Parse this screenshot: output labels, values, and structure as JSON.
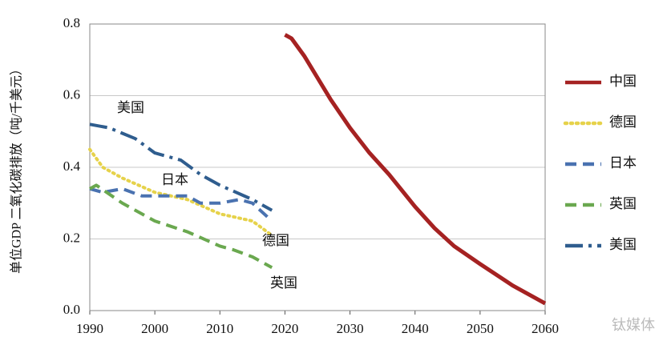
{
  "chart_data": {
    "type": "line",
    "y_label": "单位GDP 二氧化碳排放（吨/千美元）",
    "xlim": [
      1990,
      2060
    ],
    "xticks": [
      1990,
      2000,
      2010,
      2020,
      2030,
      2040,
      2050,
      2060
    ],
    "ylim": [
      0,
      0.8
    ],
    "yticks": [
      {
        "value": 0,
        "label": "0.0"
      },
      {
        "value": 0.2,
        "label": "0.2"
      },
      {
        "value": 0.4,
        "label": "0.4"
      },
      {
        "value": 0.6,
        "label": "0.6"
      },
      {
        "value": 0.8,
        "label": "0.8"
      }
    ],
    "grid": true,
    "legend": "right",
    "series": [
      {
        "name": "中国",
        "color": "#a52222",
        "dash": "solid",
        "x": [
          2020,
          2021,
          2023,
          2025,
          2027,
          2030,
          2033,
          2036,
          2040,
          2043,
          2046,
          2050,
          2055,
          2060
        ],
        "values": [
          0.77,
          0.76,
          0.71,
          0.65,
          0.59,
          0.51,
          0.44,
          0.38,
          0.29,
          0.23,
          0.18,
          0.13,
          0.07,
          0.02
        ]
      },
      {
        "name": "德国",
        "color": "#e6d24a",
        "dash": "dot",
        "x": [
          1990,
          1992,
          1995,
          2000,
          2005,
          2010,
          2015,
          2018
        ],
        "values": [
          0.45,
          0.4,
          0.37,
          0.33,
          0.31,
          0.27,
          0.25,
          0.21
        ]
      },
      {
        "name": "日本",
        "color": "#4a72b0",
        "dash": "dash",
        "x": [
          1990,
          1992,
          1995,
          1998,
          2000,
          2005,
          2007,
          2010,
          2013,
          2015,
          2018
        ],
        "values": [
          0.34,
          0.33,
          0.34,
          0.32,
          0.32,
          0.32,
          0.3,
          0.3,
          0.31,
          0.3,
          0.25
        ]
      },
      {
        "name": "英国",
        "color": "#6aa84f",
        "dash": "dash",
        "x": [
          1990,
          1991,
          1995,
          2000,
          2005,
          2010,
          2012,
          2015,
          2018
        ],
        "values": [
          0.34,
          0.35,
          0.3,
          0.25,
          0.22,
          0.18,
          0.17,
          0.15,
          0.12
        ]
      },
      {
        "name": "美国",
        "color": "#2f5d8e",
        "dash": "dashdot",
        "x": [
          1990,
          1993,
          1997,
          2000,
          2004,
          2007,
          2010,
          2015,
          2018
        ],
        "values": [
          0.52,
          0.51,
          0.48,
          0.44,
          0.42,
          0.38,
          0.35,
          0.31,
          0.28
        ]
      }
    ],
    "annotations": [
      "美国",
      "日本",
      "德国",
      "英国"
    ],
    "watermark": "钛媒体"
  }
}
